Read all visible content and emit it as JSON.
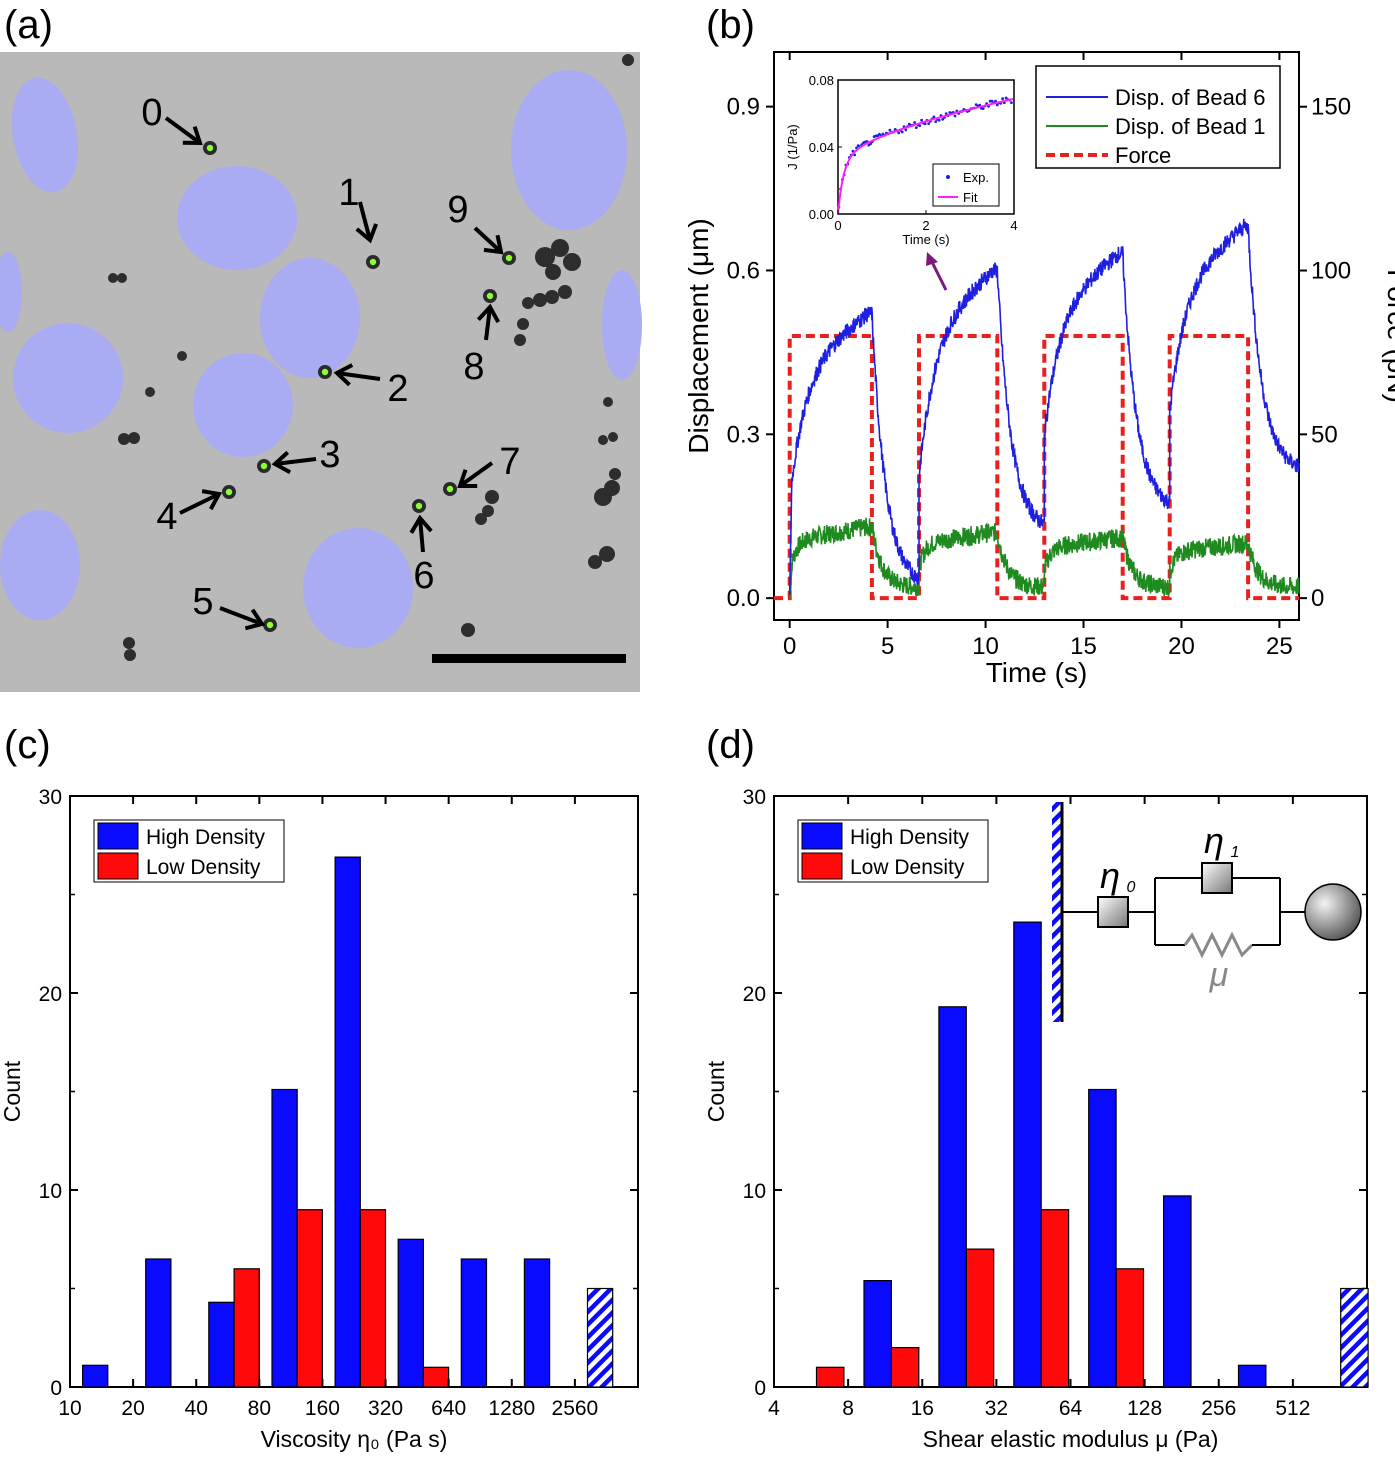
{
  "panels": {
    "a": {
      "label": "(a)",
      "bead_labels": [
        "0",
        "1",
        "2",
        "3",
        "4",
        "5",
        "6",
        "7",
        "8",
        "9"
      ],
      "colors": {
        "background": "#b9b9b9",
        "nucleus": "#a9acf2",
        "bead": "#8cff33"
      }
    },
    "b": {
      "label": "(b)"
    },
    "c": {
      "label": "(c)"
    },
    "d": {
      "label": "(d)"
    }
  },
  "chart_data": [
    {
      "panel": "b",
      "type": "line",
      "xlabel": "Time (s)",
      "ylabel": "Displacement (μm)",
      "y2label": "Force (pN)",
      "xlim": [
        -0.8,
        26
      ],
      "ylim": [
        -0.04,
        1.0
      ],
      "y2lim": [
        -6.67,
        166.7
      ],
      "x_ticks": [
        "0",
        "5",
        "10",
        "15",
        "20",
        "25"
      ],
      "y_ticks": [
        "0.0",
        "0.3",
        "0.6",
        "0.9"
      ],
      "y2_ticks": [
        "0",
        "50",
        "100",
        "150"
      ],
      "legend": {
        "position": "top-right",
        "entries": [
          "Disp. of Bead 6",
          "Disp. of Bead 1",
          "Force"
        ]
      },
      "series": [
        {
          "name": "Disp. of Bead 6",
          "color": "#1f1fe0",
          "cycles": [
            [
              0,
              4.2,
              0.52,
              6.6,
              0.02
            ],
            [
              6.6,
              10.6,
              0.6,
              13.0,
              0.12
            ],
            [
              13.0,
              17.0,
              0.63,
              19.4,
              0.16
            ],
            [
              19.4,
              23.4,
              0.68,
              26,
              0.23
            ]
          ]
        },
        {
          "name": "Disp. of Bead 1",
          "color": "#1f8a1f",
          "cycles": [
            [
              0,
              4.2,
              0.13,
              6.6,
              0.02
            ],
            [
              6.6,
              10.6,
              0.12,
              13.0,
              0.02
            ],
            [
              13.0,
              17.0,
              0.11,
              19.4,
              0.02
            ],
            [
              19.4,
              23.4,
              0.1,
              26,
              0.02
            ]
          ]
        },
        {
          "name": "Force",
          "color": "#e8201e",
          "x": [
            -0.8,
            0,
            0,
            4.2,
            4.2,
            6.6,
            6.6,
            10.6,
            10.6,
            13.0,
            13.0,
            17.0,
            17.0,
            19.4,
            19.4,
            23.4,
            23.4,
            26
          ],
          "y": [
            0,
            0,
            80,
            80,
            0,
            0,
            80,
            80,
            0,
            0,
            80,
            80,
            0,
            0,
            80,
            80,
            0,
            0
          ]
        }
      ],
      "inset": {
        "xlabel": "Time (s)",
        "ylabel": "J (1/Pa)",
        "xlim": [
          0,
          4
        ],
        "ylim": [
          0,
          0.08
        ],
        "x_ticks": [
          "0",
          "2",
          "4"
        ],
        "y_ticks": [
          "0.00",
          "0.04",
          "0.08"
        ],
        "legend": [
          "Exp.",
          "Fit"
        ],
        "fit_colors": {
          "exp": "#1f1fe0",
          "fit": "#ff20ff"
        }
      }
    },
    {
      "panel": "c",
      "type": "bar",
      "xlabel": "Viscosity η₀ (Pa s)",
      "ylabel": "Count",
      "ylim": [
        0,
        30
      ],
      "x_tick_labels": [
        "10",
        "20",
        "40",
        "80",
        "160",
        "320",
        "640",
        "1280",
        "2560"
      ],
      "y_ticks": [
        "0",
        "10",
        "20",
        "30"
      ],
      "legend": {
        "position": "top-left",
        "entries": [
          "High Density",
          "Low Density"
        ]
      },
      "series": [
        {
          "name": "High Density",
          "color": "#0a0aff",
          "bins": [
            0,
            1,
            2,
            3,
            4,
            5,
            6,
            7,
            8
          ],
          "values": [
            1.1,
            6.5,
            4.3,
            15.1,
            26.9,
            7.5,
            6.5,
            6.5,
            5.0
          ],
          "hatched_last": true
        },
        {
          "name": "Low Density",
          "color": "#ff0a0a",
          "bins": [
            2,
            3,
            4,
            5
          ],
          "values": [
            6.0,
            9.0,
            9.0,
            1.0
          ]
        }
      ]
    },
    {
      "panel": "d",
      "type": "bar",
      "xlabel": "Shear elastic modulus μ (Pa)",
      "ylabel": "Count",
      "ylim": [
        0,
        30
      ],
      "x_tick_labels": [
        "4",
        "8",
        "16",
        "32",
        "64",
        "128",
        "256",
        "512"
      ],
      "y_ticks": [
        "0",
        "10",
        "20",
        "30"
      ],
      "legend": {
        "position": "top-left",
        "entries": [
          "High Density",
          "Low Density"
        ]
      },
      "series": [
        {
          "name": "High Density",
          "color": "#0a0aff",
          "bins": [
            1,
            2,
            3,
            4,
            5,
            6,
            7
          ],
          "values": [
            5.4,
            19.3,
            23.6,
            15.1,
            9.7,
            1.1,
            5.0
          ],
          "hatched_last": true
        },
        {
          "name": "Low Density",
          "color": "#ff0a0a",
          "bins": [
            0,
            1,
            2,
            3,
            4
          ],
          "values": [
            1.0,
            2.0,
            7.0,
            9.0,
            6.0
          ]
        }
      ],
      "model_labels": {
        "eta0": "η",
        "eta0_sub": "0",
        "eta1": "η",
        "eta1_sub": "1",
        "mu": "μ"
      }
    }
  ]
}
